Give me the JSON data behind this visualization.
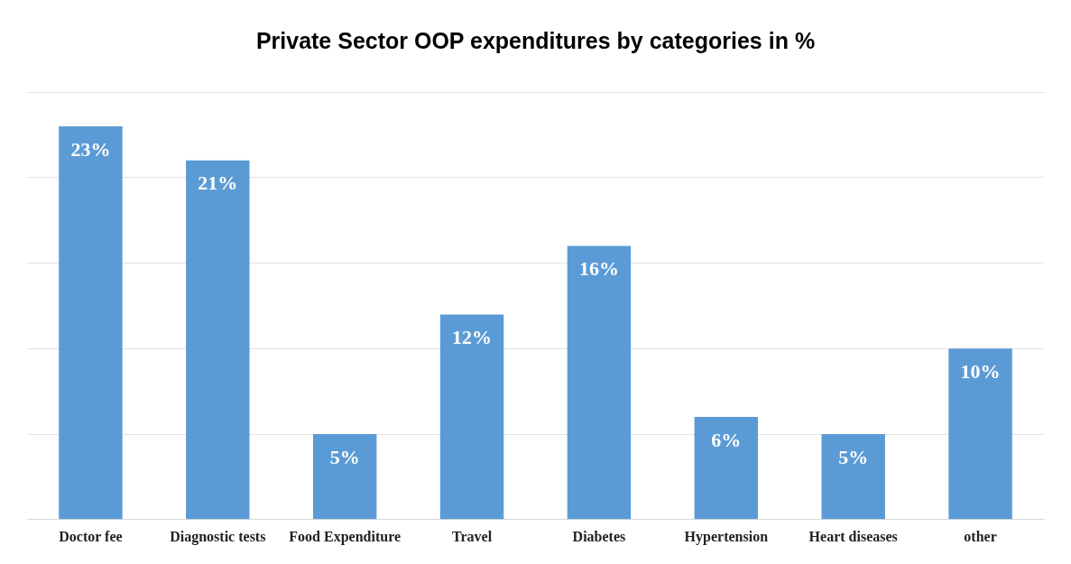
{
  "chart_data": {
    "type": "bar",
    "title": "Private Sector OOP expenditures by categories in %",
    "categories": [
      "Doctor fee",
      "Diagnostic tests",
      "Food Expenditure",
      "Travel",
      "Diabetes",
      "Hypertension",
      "Heart diseases",
      "other"
    ],
    "values": [
      23,
      21,
      5,
      12,
      16,
      6,
      5,
      10
    ],
    "value_labels": [
      "23%",
      "21%",
      "5%",
      "12%",
      "16%",
      "6%",
      "5%",
      "10%"
    ],
    "color": "#5b9bd5",
    "ylim": [
      0,
      25
    ],
    "yticks": [
      0,
      5,
      10,
      15,
      20,
      25
    ],
    "tick_labels": "x",
    "grid": "y"
  }
}
